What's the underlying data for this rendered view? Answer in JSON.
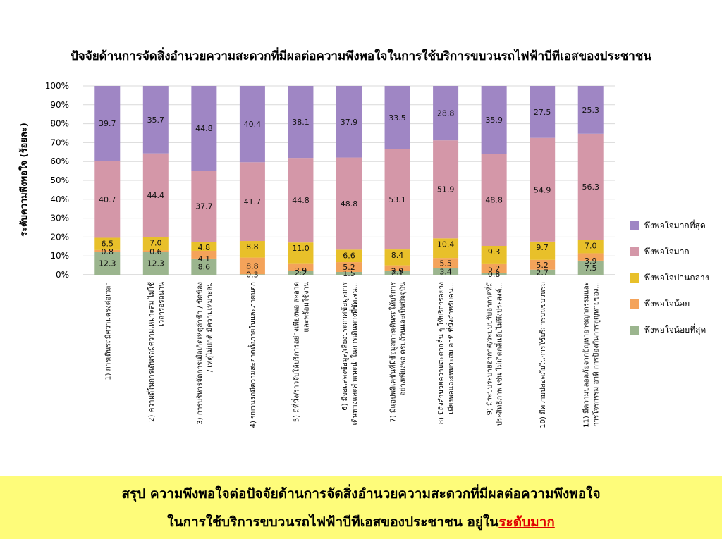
{
  "chart_data": {
    "type": "bar",
    "stacked": true,
    "title": "ปัจจัยด้านการจัดสิ่งอำนวยความสะดวกที่มีผลต่อความพึงพอใจในการใช้บริการขบวนรถไฟฟ้าบีทีเอสของประชาชน",
    "ylabel": "ระดับความพึงพอใจ (ร้อยละ)",
    "ylim": [
      0,
      100
    ],
    "yticks": [
      "0%",
      "10%",
      "20%",
      "30%",
      "40%",
      "50%",
      "60%",
      "70%",
      "80%",
      "90%",
      "100%"
    ],
    "legend_position": "right",
    "categories": [
      [
        "1) การเดินรถมีความตรงต่อเวลา"
      ],
      [
        "2) ความถี่ในการเดินรถมีความเหมาะสม ไม่ใช้",
        "เวลารอรถนาน"
      ],
      [
        "3) การบริหารจัดการเมื่อเกิดเหตุล่าช้า / ขัดข้อง",
        "/ เหตุไม่ปกติ มีความเหมาะสม"
      ],
      [
        "4) ขบวนรถมีความสะอาดทั้งภายในและภายนอก"
      ],
      [
        "5) มีที่นั่ง/ราวจับให้บริการอย่างเพียงพอ สะอาด",
        "และพร้อมใช้งาน"
      ],
      [
        "6) มีจอแสดงข้อมูล/เสียงประกาศข้อมูลการ",
        "เดินทางและคำแนะนำในการเดินทางที่ชัดเจน..."
      ],
      [
        "7) มีแอปพลิเคชันที่มีข้อมูลการเดินรถให้บริการ",
        "อย่างเพียงพอ ครบถ้วนและเป็นปัจจุบัน"
      ],
      [
        "8) มีสิ่งอำนวยความสะดวกอื่น ๆ ให้บริการอย่าง",
        "เพียงพอและเหมาะสม อาทิ ที่นั่งสำหรับคน..."
      ],
      [
        "9) มีระบบระบายอากาศ/ระบบปรับอากาศที่มี",
        "ประสิทธิภาพ เช่น ไม่เกิดกลิ่นอับไม่พึงประสงค์..."
      ],
      [
        "10) มีความปลอดภัยในการใช้บริการบนขบวนรถ"
      ],
      [
        "11) มีความปลอดภัยจากปัญหาอาชญากรรมและ",
        "การโจรกรรม อาทิ การป้องกันการสูญหายของ..."
      ]
    ],
    "series": [
      {
        "name": "พึงพอใจน้อยที่สุด",
        "color": "#9bb58e",
        "values": [
          12.3,
          12.3,
          8.6,
          0.3,
          2.2,
          1.5,
          2.1,
          3.4,
          0.8,
          2.7,
          7.5
        ],
        "labels": [
          "12.3",
          "12.3",
          "8.6",
          "0.3",
          "2.2",
          "1.5",
          "2.1",
          "3.4",
          "0.8",
          "2.7",
          "7.5"
        ]
      },
      {
        "name": "พึงพอใจน้อย",
        "color": "#f4a35a",
        "values": [
          0.8,
          0.6,
          4.1,
          8.8,
          3.9,
          5.2,
          2.9,
          5.5,
          5.2,
          5.2,
          3.9
        ],
        "labels": [
          "0.8",
          "0.6",
          "4.1",
          "8.8",
          "3.9",
          "5.2",
          "2.9",
          "5.5",
          "5.2",
          "5.2",
          "3.9"
        ]
      },
      {
        "name": "พึงพอใจปานกลาง",
        "color": "#e8c02a",
        "values": [
          6.5,
          7.0,
          4.8,
          8.8,
          11.0,
          6.6,
          8.4,
          10.4,
          9.3,
          9.7,
          7.0
        ],
        "labels": [
          "6.5",
          "7.0",
          "4.8",
          "8.8",
          "11.0",
          "6.6",
          "8.4",
          "10.4",
          "9.3",
          "9.7",
          "7.0"
        ]
      },
      {
        "name": "พึงพอใจมาก",
        "color": "#d497a8",
        "values": [
          40.7,
          44.4,
          37.7,
          41.7,
          44.8,
          48.8,
          53.1,
          51.9,
          48.8,
          54.9,
          56.3
        ],
        "labels": [
          "40.7",
          "44.4",
          "37.7",
          "41.7",
          "44.8",
          "48.8",
          "53.1",
          "51.9",
          "48.8",
          "54.9",
          "56.3"
        ]
      },
      {
        "name": "พึงพอใจมากที่สุด",
        "color": "#9f86c4",
        "values": [
          39.7,
          35.7,
          44.8,
          40.4,
          38.1,
          37.9,
          33.5,
          28.8,
          35.9,
          27.5,
          25.3
        ],
        "labels": [
          "39.7",
          "35.7",
          "44.8",
          "40.4",
          "38.1",
          "37.9",
          "33.5",
          "28.8",
          "35.9",
          "27.5",
          "25.3"
        ]
      }
    ],
    "legend_order": [
      4,
      3,
      2,
      1,
      0
    ]
  },
  "summary": {
    "line1": "สรุป ความพึงพอใจต่อปัจจัยด้านการจัดสิ่งอำนวยความสะดวกที่มีผลต่อความพึงพอใจ",
    "line2": "ในการใช้บริการขบวนรถไฟฟ้าบีทีเอสของประชาชน อยู่ใน",
    "highlight": "ระดับมาก"
  }
}
